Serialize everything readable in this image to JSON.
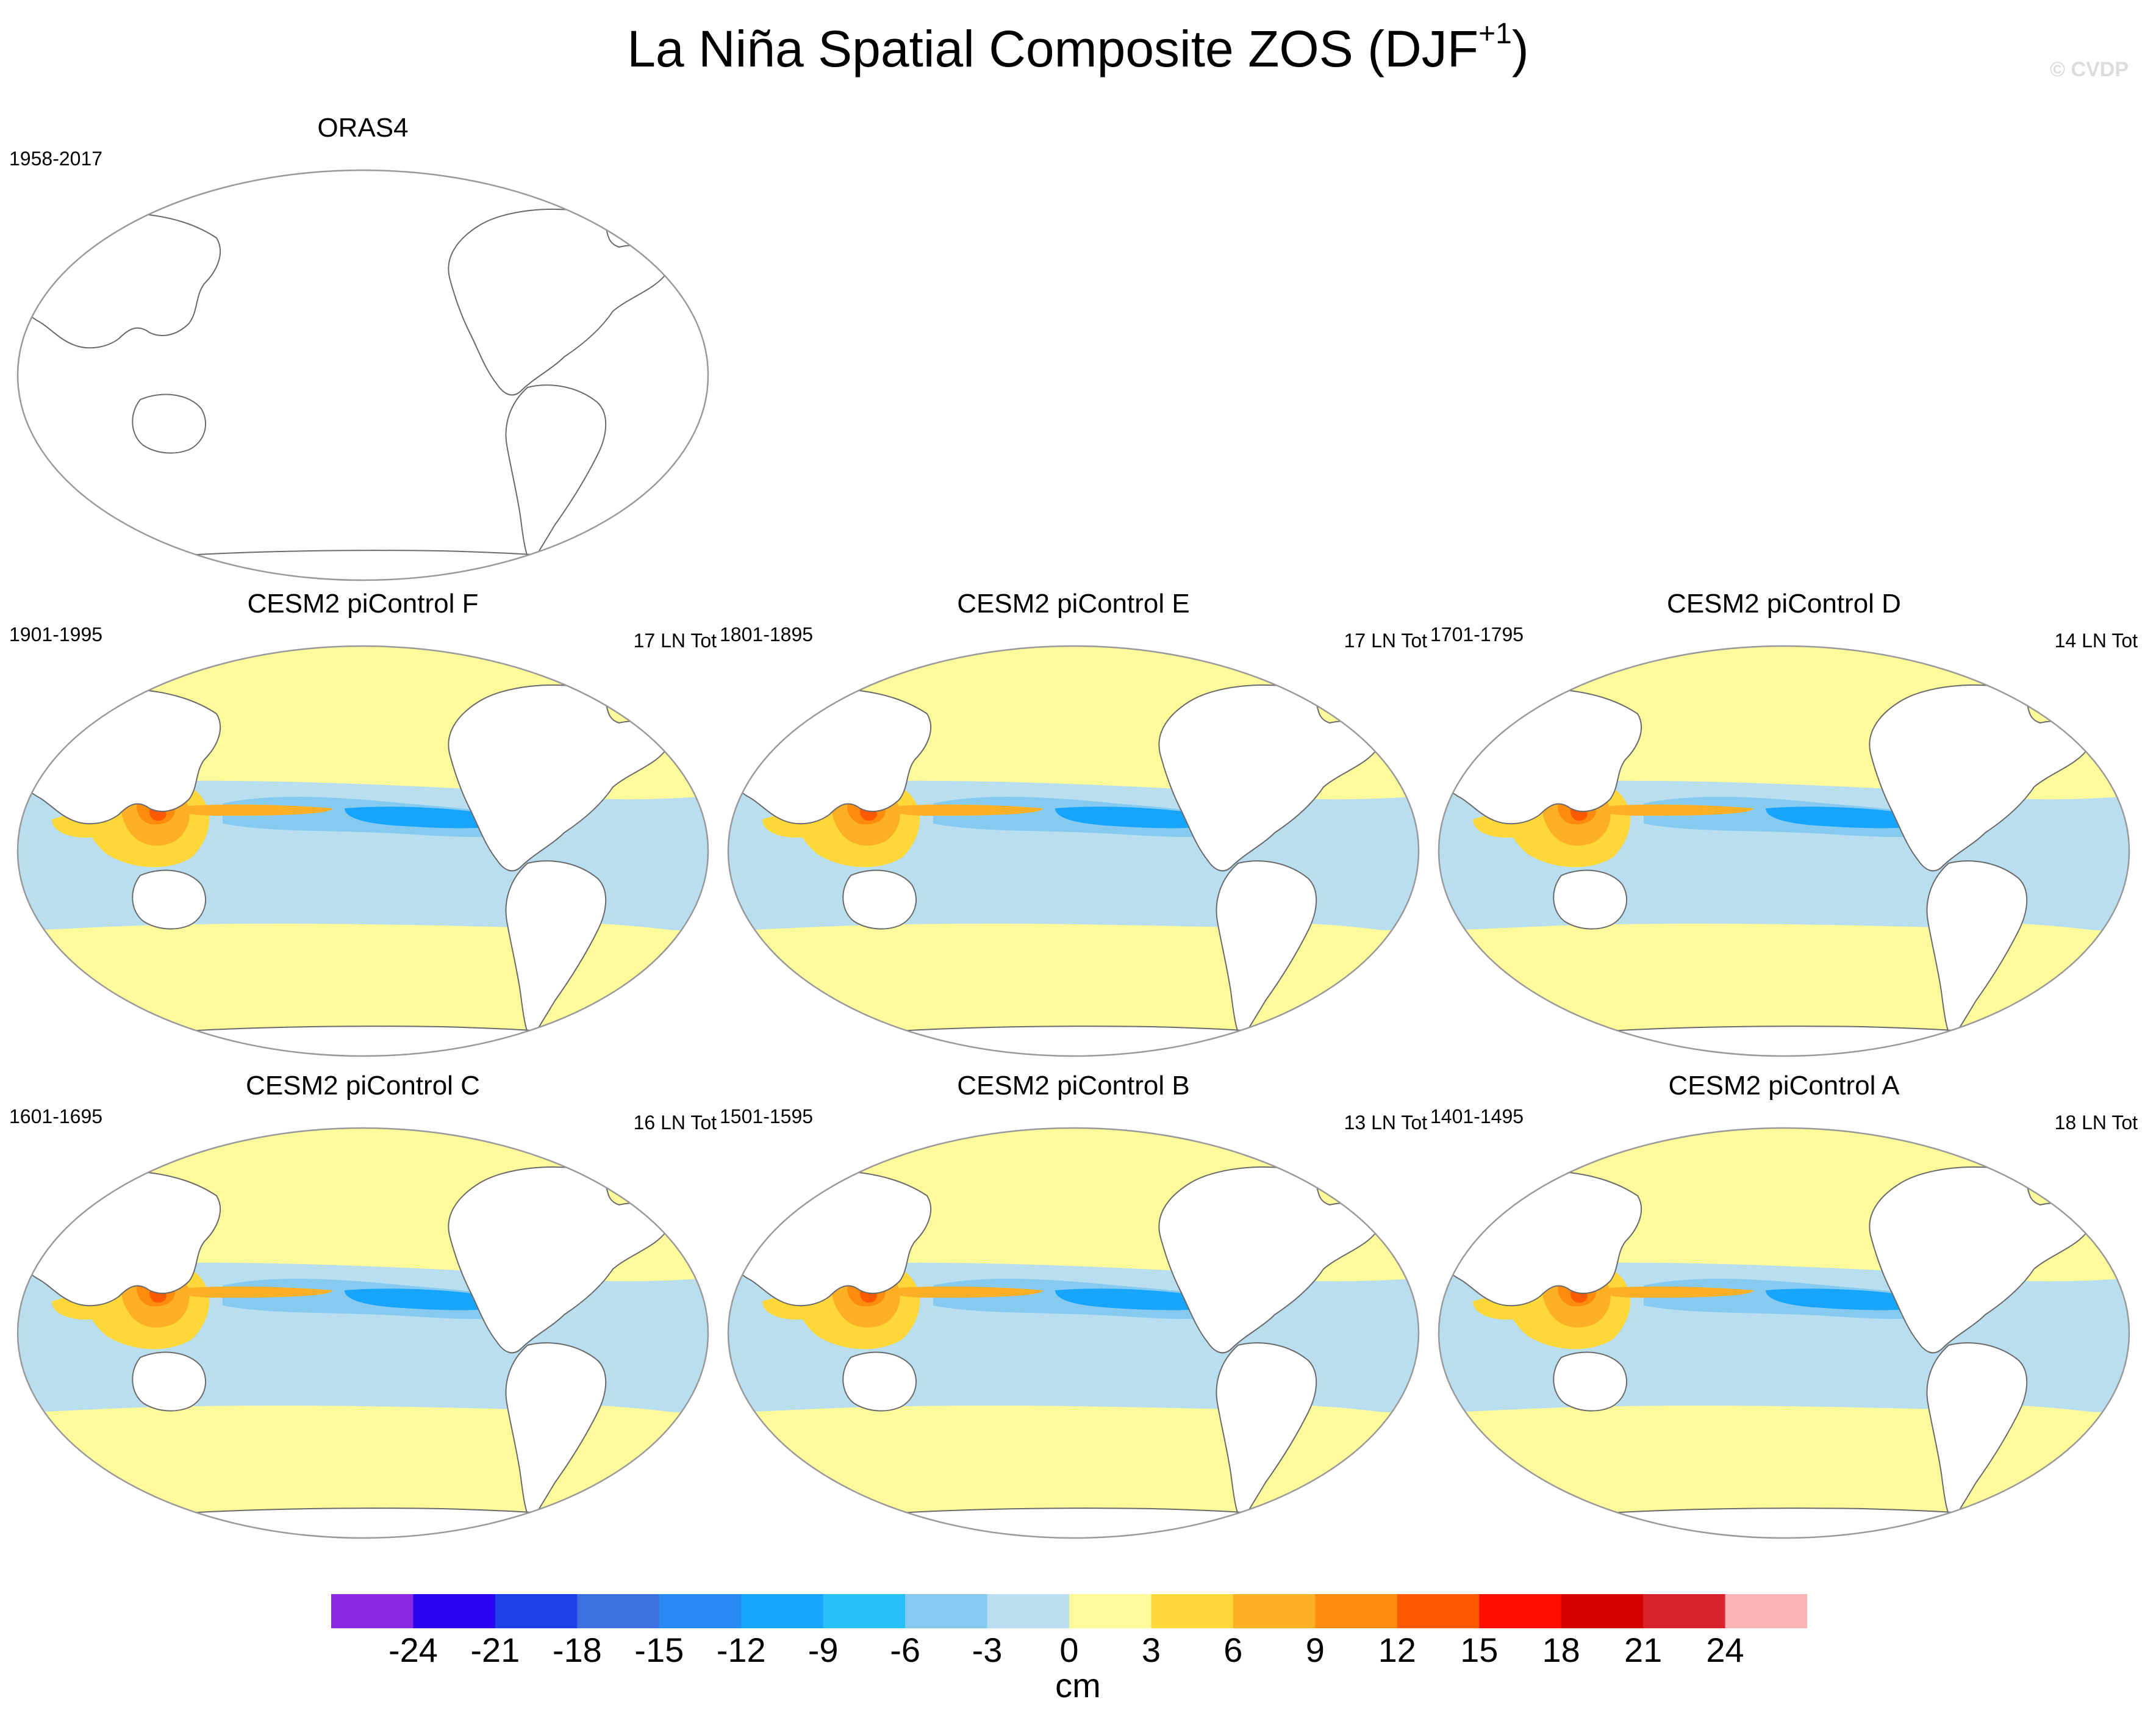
{
  "figure": {
    "title_main": "La Niña Spatial Composite ZOS (DJF",
    "title_sup": "+1",
    "title_close": ")",
    "copyright": "© CVDP"
  },
  "panels": [
    {
      "title": "ORAS4",
      "years": "1958-2017",
      "count": "",
      "filled": false
    },
    {
      "title": "CESM2 piControl F",
      "years": "1901-1995",
      "count": "17 LN Tot",
      "filled": true
    },
    {
      "title": "CESM2 piControl E",
      "years": "1801-1895",
      "count": "17 LN Tot",
      "filled": true
    },
    {
      "title": "CESM2 piControl D",
      "years": "1701-1795",
      "count": "14 LN Tot",
      "filled": true
    },
    {
      "title": "CESM2 piControl C",
      "years": "1601-1695",
      "count": "16 LN Tot",
      "filled": true
    },
    {
      "title": "CESM2 piControl B",
      "years": "1501-1595",
      "count": "13 LN Tot",
      "filled": true
    },
    {
      "title": "CESM2 piControl A",
      "years": "1401-1495",
      "count": "18 LN Tot",
      "filled": true
    }
  ],
  "colorbar": {
    "units": "cm",
    "labels": [
      "-24",
      "-21",
      "-18",
      "-15",
      "-12",
      "-9",
      "-6",
      "-3",
      "0",
      "3",
      "6",
      "9",
      "12",
      "15",
      "18",
      "21",
      "24"
    ],
    "colors": [
      "#8a2be2",
      "#2a06f0",
      "#1f3fe8",
      "#3c6fe0",
      "#2a8af5",
      "#17a5fb",
      "#28c0f8",
      "#86cbef",
      "#b9def0",
      "#fdfa9c",
      "#fed839",
      "#fdb025",
      "#fd8c0c",
      "#fd5a00",
      "#fe0f00",
      "#d60000",
      "#d8232f",
      "#fcb4b5"
    ]
  }
}
